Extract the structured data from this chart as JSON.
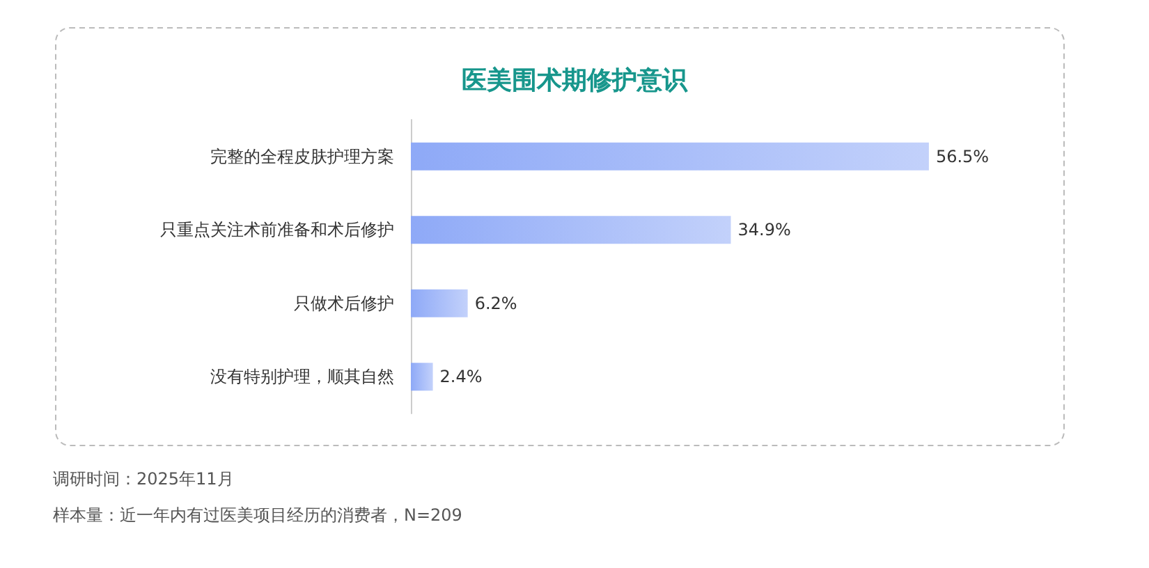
{
  "chart_data": {
    "type": "bar",
    "orientation": "horizontal",
    "title": "医美围术期修护意识",
    "categories": [
      "完整的全程皮肤护理方案",
      "只重点关注术前准备和术后修护",
      "只做术后修护",
      "没有特别护理，顺其自然"
    ],
    "values": [
      56.5,
      34.9,
      6.2,
      2.4
    ],
    "value_labels": [
      "56.5%",
      "34.9%",
      "6.2%",
      "2.4%"
    ],
    "color": "#8ea9f7",
    "tick_labels": "y",
    "annotations": [
      "调研时间：2025年11月",
      "样本量：近一年内有过医美项目经历的消费者，N=209"
    ]
  }
}
